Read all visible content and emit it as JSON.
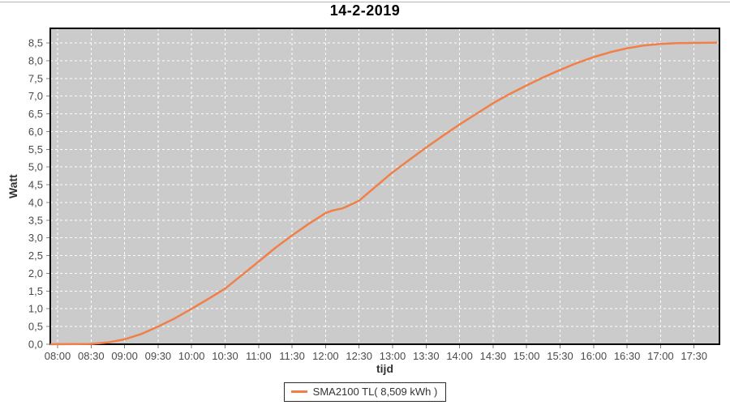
{
  "window": {
    "top_edge_color": "#b4b4b4",
    "background": "#ffffff"
  },
  "chart": {
    "title": "14-2-2019",
    "y_axis_label": "Watt",
    "x_axis_label": "tijd",
    "legend": {
      "label": "SMA2100 TL( 8,509 kWh )",
      "swatch_color": "#f08048"
    },
    "colors": {
      "plot_bg": "#cbcbcb",
      "grid": "#ffffff",
      "axis_border": "#000000",
      "tick": "#7f7f7f",
      "tick_label": "#4a4a4a",
      "series": "#f08048"
    }
  },
  "chart_data": {
    "type": "line",
    "title": "14-2-2019",
    "xlabel": "tijd",
    "ylabel": "Watt",
    "ylim": [
      0,
      8.5
    ],
    "grid": true,
    "grid_style": "white-dashed-on-gray",
    "legend_position": "bottom-center",
    "x_tick_labels": [
      "08:00",
      "08:30",
      "09:00",
      "09:30",
      "10:00",
      "10:30",
      "11:00",
      "11:30",
      "12:00",
      "12:30",
      "13:00",
      "13:30",
      "14:00",
      "14:30",
      "15:00",
      "15:30",
      "16:00",
      "16:30",
      "17:00",
      "17:30"
    ],
    "y_tick_labels": [
      "0,0",
      "0,5",
      "1,0",
      "1,5",
      "2,0",
      "2,5",
      "3,0",
      "3,5",
      "4,0",
      "4,5",
      "5,0",
      "5,5",
      "6,0",
      "6,5",
      "7,0",
      "7,5",
      "8,0",
      "8,5"
    ],
    "series": [
      {
        "name": "SMA2100 TL( 8,509 kWh )",
        "color": "#f08048",
        "final_total_kwh": "8,509",
        "points": [
          {
            "t": "07:54",
            "v": 0.0
          },
          {
            "t": "08:30",
            "v": 0.01
          },
          {
            "t": "08:45",
            "v": 0.05
          },
          {
            "t": "09:00",
            "v": 0.14
          },
          {
            "t": "09:15",
            "v": 0.29
          },
          {
            "t": "09:30",
            "v": 0.5
          },
          {
            "t": "09:45",
            "v": 0.73
          },
          {
            "t": "10:00",
            "v": 1.0
          },
          {
            "t": "10:15",
            "v": 1.28
          },
          {
            "t": "10:30",
            "v": 1.57
          },
          {
            "t": "10:45",
            "v": 1.95
          },
          {
            "t": "11:00",
            "v": 2.33
          },
          {
            "t": "11:15",
            "v": 2.72
          },
          {
            "t": "11:30",
            "v": 3.07
          },
          {
            "t": "11:45",
            "v": 3.4
          },
          {
            "t": "12:00",
            "v": 3.7
          },
          {
            "t": "12:05",
            "v": 3.76
          },
          {
            "t": "12:10",
            "v": 3.8
          },
          {
            "t": "12:15",
            "v": 3.83
          },
          {
            "t": "12:20",
            "v": 3.9
          },
          {
            "t": "12:30",
            "v": 4.05
          },
          {
            "t": "12:45",
            "v": 4.45
          },
          {
            "t": "13:00",
            "v": 4.85
          },
          {
            "t": "13:15",
            "v": 5.2
          },
          {
            "t": "13:30",
            "v": 5.55
          },
          {
            "t": "13:45",
            "v": 5.88
          },
          {
            "t": "14:00",
            "v": 6.2
          },
          {
            "t": "14:15",
            "v": 6.5
          },
          {
            "t": "14:30",
            "v": 6.8
          },
          {
            "t": "14:45",
            "v": 7.06
          },
          {
            "t": "15:00",
            "v": 7.3
          },
          {
            "t": "15:15",
            "v": 7.53
          },
          {
            "t": "15:30",
            "v": 7.74
          },
          {
            "t": "15:45",
            "v": 7.93
          },
          {
            "t": "16:00",
            "v": 8.1
          },
          {
            "t": "16:15",
            "v": 8.24
          },
          {
            "t": "16:30",
            "v": 8.35
          },
          {
            "t": "16:45",
            "v": 8.43
          },
          {
            "t": "17:00",
            "v": 8.47
          },
          {
            "t": "17:15",
            "v": 8.495
          },
          {
            "t": "17:30",
            "v": 8.5
          },
          {
            "t": "17:50",
            "v": 8.509
          }
        ]
      }
    ]
  }
}
